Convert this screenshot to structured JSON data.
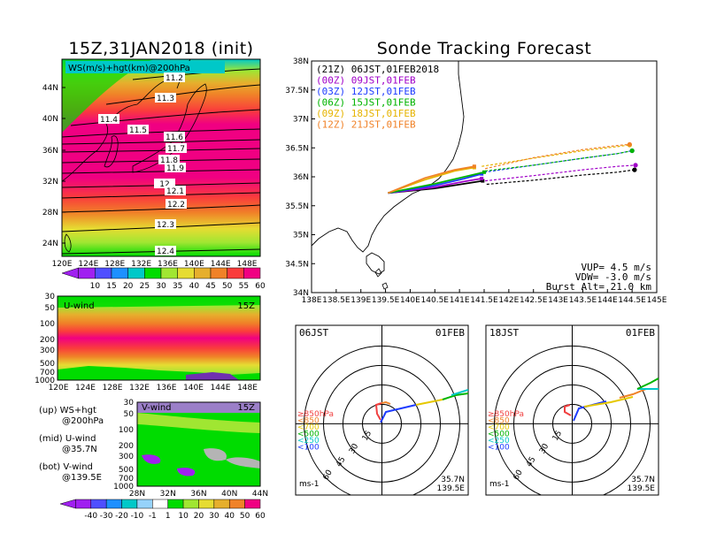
{
  "left_title": "15Z,31JAN2018 (init)",
  "right_title": "Sonde Tracking Forecast",
  "map_panel": {
    "label": "WS(m/s)+hgt(km)@200hPa",
    "lat_ticks": [
      "24N",
      "28N",
      "32N",
      "36N",
      "40N",
      "44N"
    ],
    "lon_ticks": [
      "120E",
      "124E",
      "128E",
      "132E",
      "136E",
      "140E",
      "144E",
      "148E"
    ],
    "contours": [
      "11.2",
      "11.3",
      "11.4",
      "11.5",
      "11.6",
      "11.7",
      "11.8",
      "11.9",
      "12",
      "12.1",
      "12.2",
      "12.3",
      "12.4"
    ],
    "colorbar_ticks": [
      "10",
      "15",
      "20",
      "25",
      "30",
      "35",
      "40",
      "45",
      "50",
      "55",
      "60"
    ],
    "colorbar_colors": [
      "#a020f0",
      "#4f4fff",
      "#1e90ff",
      "#00c8c8",
      "#00dc00",
      "#a0e632",
      "#e6dc32",
      "#e6af2d",
      "#f08228",
      "#fa3c3c",
      "#f00082"
    ]
  },
  "uwind_panel": {
    "label": "U-wind",
    "time": "15Z",
    "p_ticks": [
      "30",
      "50",
      "100",
      "200",
      "300",
      "500",
      "700",
      "1000"
    ],
    "lon_ticks": [
      "120E",
      "124E",
      "128E",
      "132E",
      "136E",
      "140E",
      "144E",
      "148E"
    ]
  },
  "vwind_panel": {
    "label": "V-wind",
    "time": "15Z",
    "p_ticks": [
      "30",
      "50",
      "100",
      "200",
      "300",
      "500",
      "700",
      "1000"
    ],
    "lat_ticks": [
      "28N",
      "32N",
      "36N",
      "40N",
      "44N"
    ],
    "colorbar_ticks": [
      "-40",
      "-30",
      "-20",
      "-10",
      "-1",
      "1",
      "10",
      "20",
      "30",
      "40",
      "50",
      "60"
    ],
    "colorbar_colors": [
      "#a020f0",
      "#4f4fff",
      "#1e90ff",
      "#00c8c8",
      "#96d2fa",
      "#ffffff",
      "#00dc00",
      "#a0e632",
      "#e6dc32",
      "#e6af2d",
      "#f08228",
      "#f00082"
    ]
  },
  "legend_notes": [
    {
      "line1": "(up) WS+hgt",
      "line2": "@200hPa"
    },
    {
      "line1": "(mid) U-wind",
      "line2": "@35.7N"
    },
    {
      "line1": "(bot) V-wind",
      "line2": "@139.5E"
    }
  ],
  "chart_data": {
    "type": "line",
    "title": "Sonde Tracking Forecast",
    "xlim": [
      138,
      145
    ],
    "ylim": [
      34,
      38
    ],
    "x_ticks": [
      "138E",
      "138.5E",
      "139E",
      "139.5E",
      "140E",
      "140.5E",
      "141E",
      "141.5E",
      "142E",
      "142.5E",
      "143E",
      "143.5E",
      "144E",
      "144.5E",
      "145E"
    ],
    "y_ticks": [
      "34N",
      "34.5N",
      "35N",
      "35.5N",
      "36N",
      "36.5N",
      "37N",
      "37.5N",
      "38N"
    ],
    "series": [
      {
        "name": "(21Z)  06JST,01FEB2018",
        "color": "#000000",
        "x": [
          139.55,
          140.5,
          141.1,
          141.47,
          141.55,
          142.5,
          143.5,
          144.2,
          144.55
        ],
        "y": [
          35.72,
          35.8,
          35.88,
          35.93,
          35.87,
          35.94,
          36.03,
          36.08,
          36.12
        ]
      },
      {
        "name": "(00Z)  09JST,01FEB",
        "color": "#a000c8",
        "x": [
          139.55,
          140.5,
          141.1,
          141.45,
          141.52,
          142.5,
          143.5,
          144.2,
          144.57
        ],
        "y": [
          35.72,
          35.82,
          35.92,
          35.97,
          35.93,
          36.02,
          36.12,
          36.18,
          36.2
        ]
      },
      {
        "name": "(03Z)  12JST,01FEB",
        "color": "#1e3cff",
        "x": [
          139.55,
          140.5,
          141.1,
          141.45,
          141.5,
          142.5,
          143.5,
          144.2,
          144.5
        ],
        "y": [
          35.72,
          35.85,
          35.97,
          36.05,
          36.08,
          36.2,
          36.32,
          36.4,
          36.45
        ]
      },
      {
        "name": "(06Z)  15JST,01FEB",
        "color": "#00b400",
        "x": [
          139.55,
          140.5,
          141.1,
          141.5,
          141.52,
          142.5,
          143.5,
          144.2,
          144.5
        ],
        "y": [
          35.72,
          35.88,
          36.0,
          36.08,
          36.1,
          36.2,
          36.32,
          36.4,
          36.45
        ]
      },
      {
        "name": "(09Z)  18JST,01FEB",
        "color": "#e6b400",
        "x": [
          139.55,
          140.3,
          140.9,
          141.3,
          141.45,
          142.5,
          143.5,
          144.2,
          144.45
        ],
        "y": [
          35.72,
          35.95,
          36.1,
          36.16,
          36.18,
          36.32,
          36.45,
          36.52,
          36.55
        ]
      },
      {
        "name": "(12Z)  21JST,01FEB",
        "color": "#f08228",
        "x": [
          139.55,
          140.3,
          140.9,
          141.3,
          141.52,
          142.5,
          143.5,
          144.2,
          144.45
        ],
        "y": [
          35.72,
          35.98,
          36.12,
          36.18,
          36.14,
          36.33,
          36.47,
          36.54,
          36.56
        ]
      }
    ],
    "annotations": [
      {
        "text": "VUP=  4.5 m/s"
      },
      {
        "text": "VDW= -3.0 m/s"
      },
      {
        "text": "Burst Alt=  21.0 km"
      }
    ]
  },
  "hodographs": [
    {
      "time": "06JST",
      "date": "01FEB",
      "position_lat": "35.7N",
      "position_lon": "139.5E",
      "unit": "ms-1",
      "ring_labels": [
        "15",
        "30",
        "45",
        "60"
      ],
      "legend": [
        {
          "text": "≥850hPa",
          "color": "#f04040"
        },
        {
          "text": "<850",
          "color": "#f08228"
        },
        {
          "text": "<700",
          "color": "#e6c800"
        },
        {
          "text": "<500",
          "color": "#00b400"
        },
        {
          "text": "<250",
          "color": "#00c8c8"
        },
        {
          "text": "<100",
          "color": "#1e3cff"
        }
      ]
    },
    {
      "time": "18JST",
      "date": "01FEB",
      "position_lat": "35.7N",
      "position_lon": "139.5E",
      "unit": "ms-1",
      "ring_labels": [
        "15",
        "30",
        "45",
        "60"
      ],
      "legend": [
        {
          "text": "≥850hPa",
          "color": "#f04040"
        },
        {
          "text": "<850",
          "color": "#f08228"
        },
        {
          "text": "<700",
          "color": "#e6c800"
        },
        {
          "text": "<500",
          "color": "#00b400"
        },
        {
          "text": "<250",
          "color": "#00c8c8"
        },
        {
          "text": "<100",
          "color": "#1e3cff"
        }
      ]
    }
  ]
}
